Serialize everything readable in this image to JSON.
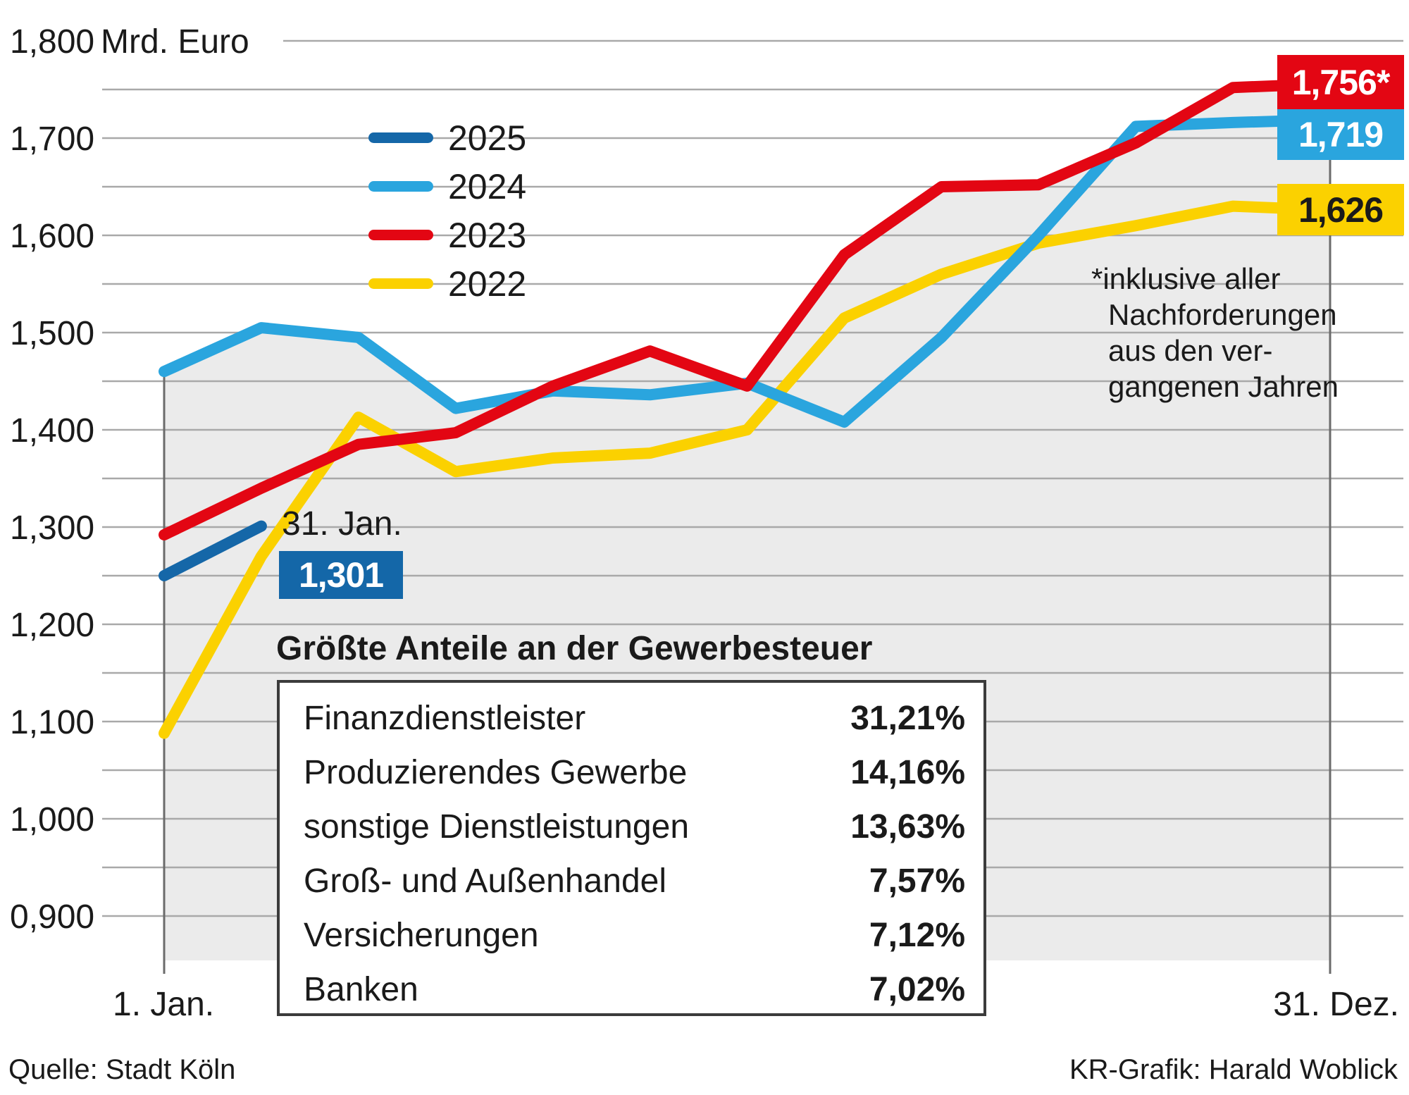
{
  "colors": {
    "red_2023": "#e30613",
    "lightblue_2024": "#2aa5de",
    "darkblue_2025": "#1567a8",
    "yellow_2022": "#fbd100",
    "area_fill": "#ebebeb",
    "gridline": "#a9a9a9",
    "axis_edge": "#6b6b6b",
    "text": "#1a1a1a",
    "badge_blue": "#1467a8"
  },
  "chart_data": {
    "type": "line",
    "title": "",
    "unit_note": "values are Gewerbesteuer in Mrd. Euro shown with German decimal comma, e.g. 1756 -> 1,756",
    "y_axis": {
      "unit": "Mrd. Euro",
      "min": 850,
      "max": 1800,
      "grid_step": 50,
      "label_step": 100,
      "tick_labels": [
        "1,800",
        "1,700",
        "1,600",
        "1,500",
        "1,400",
        "1,300",
        "1,200",
        "1,100",
        "1,000",
        "0,900"
      ]
    },
    "x_axis": {
      "start_label": "1. Jan.",
      "end_label": "31. Dez.",
      "points": "monthly: 1. Jan then end of each month"
    },
    "series": [
      {
        "name": "2025",
        "color": "#1567a8",
        "values": [
          1250,
          1301
        ],
        "end_label": null
      },
      {
        "name": "2024",
        "color": "#2aa5de",
        "values": [
          1460,
          1505,
          1495,
          1422,
          1440,
          1436,
          1448,
          1408,
          1495,
          1600,
          1712,
          1716,
          1719
        ],
        "end_label": "1,719"
      },
      {
        "name": "2023",
        "color": "#e30613",
        "values": [
          1292,
          1340,
          1385,
          1397,
          1445,
          1481,
          1445,
          1580,
          1650,
          1652,
          1695,
          1752,
          1756
        ],
        "end_label": "1,756*"
      },
      {
        "name": "2022",
        "color": "#fbd100",
        "values": [
          1088,
          1270,
          1413,
          1357,
          1371,
          1376,
          1400,
          1515,
          1560,
          1592,
          1610,
          1630,
          1626
        ],
        "end_label": "1,626"
      }
    ],
    "annotations": {
      "jan31": {
        "date_label": "31. Jan.",
        "value_label": "1,301"
      },
      "footnote_lines": [
        "*inklusive aller",
        "Nachforderungen",
        "aus den ver-",
        "gangenen Jahren"
      ]
    },
    "legend_order": [
      "2025",
      "2024",
      "2023",
      "2022"
    ],
    "legend_position": "upper-left inside plot"
  },
  "table": {
    "title": "Größte Anteile an der Gewerbesteuer",
    "rows": [
      {
        "label": "Finanzdienstleister",
        "value": "31,21%"
      },
      {
        "label": "Produzierendes Gewerbe",
        "value": "14,16%"
      },
      {
        "label": "sonstige Dienstleistungen",
        "value": "13,63%"
      },
      {
        "label": "Groß- und Außenhandel",
        "value": "7,57%"
      },
      {
        "label": "Versicherungen",
        "value": "7,12%"
      },
      {
        "label": "Banken",
        "value": "7,02%"
      }
    ]
  },
  "footer": {
    "source": "Quelle: Stadt Köln",
    "credit": "KR-Grafik: Harald Woblick"
  }
}
